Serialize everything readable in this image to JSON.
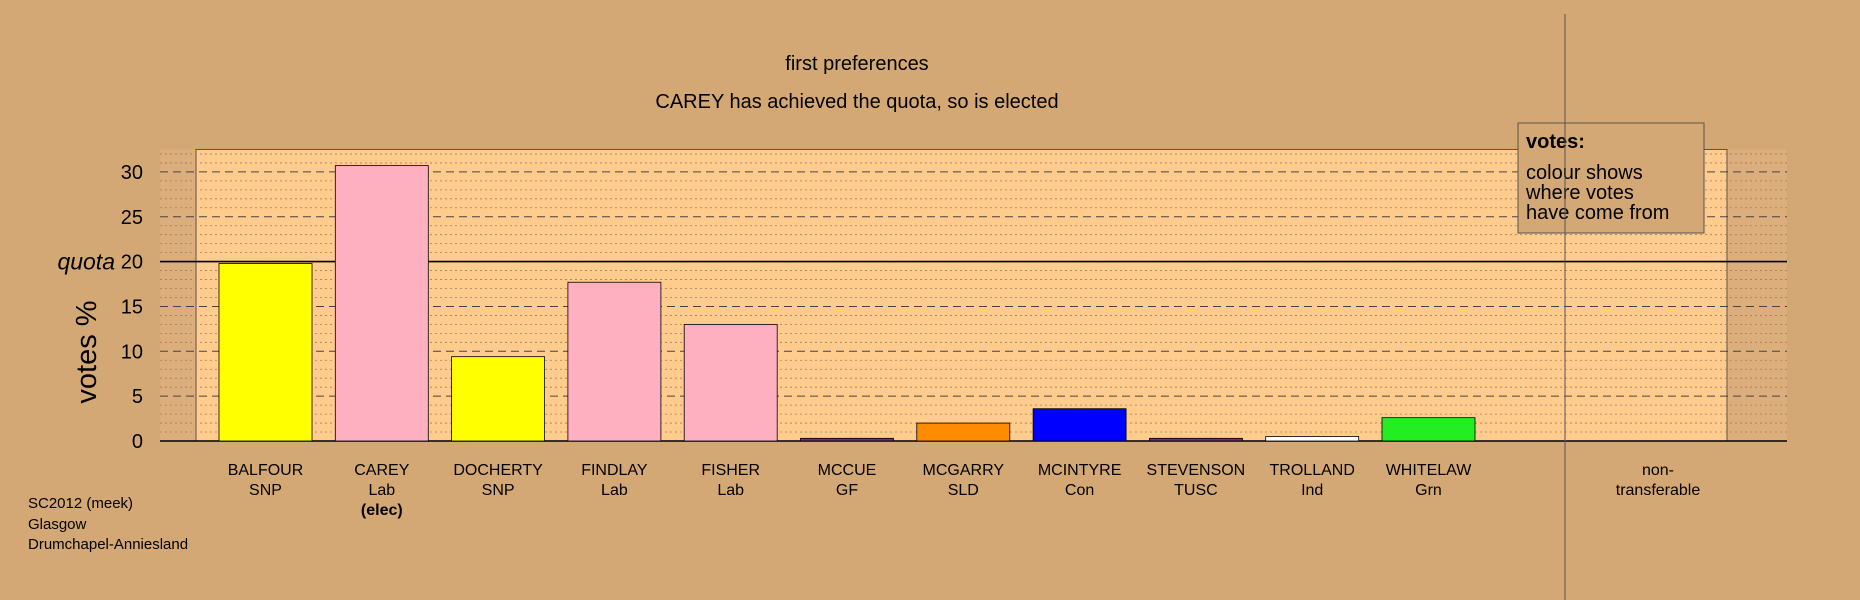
{
  "chart_data": {
    "type": "bar",
    "title": "first preferences",
    "subtitle": "CAREY has achieved the quota, so is elected",
    "ylabel": "votes %",
    "ylim": [
      0,
      32.5
    ],
    "yticks": [
      0,
      5,
      10,
      15,
      20,
      25,
      30
    ],
    "grid": true,
    "quota": {
      "label": "quota",
      "value": 20
    },
    "categories": [
      {
        "name": "BALFOUR",
        "party": "SNP",
        "note": "",
        "value": 19.8,
        "color": "#ffff00"
      },
      {
        "name": "CAREY",
        "party": "Lab",
        "note": "(elec)",
        "value": 30.7,
        "color": "#ffb0c0"
      },
      {
        "name": "DOCHERTY",
        "party": "SNP",
        "note": "",
        "value": 9.4,
        "color": "#ffff00"
      },
      {
        "name": "FINDLAY",
        "party": "Lab",
        "note": "",
        "value": 17.7,
        "color": "#ffb0c0"
      },
      {
        "name": "FISHER",
        "party": "Lab",
        "note": "",
        "value": 13.0,
        "color": "#ffb0c0"
      },
      {
        "name": "MCCUE",
        "party": "GF",
        "note": "",
        "value": 0.3,
        "color": "#7b2a7b"
      },
      {
        "name": "MCGARRY",
        "party": "SLD",
        "note": "",
        "value": 2.0,
        "color": "#ff8c00"
      },
      {
        "name": "MCINTYRE",
        "party": "Con",
        "note": "",
        "value": 3.6,
        "color": "#0000ff"
      },
      {
        "name": "STEVENSON",
        "party": "TUSC",
        "note": "",
        "value": 0.3,
        "color": "#7b2a7b"
      },
      {
        "name": "TROLLAND",
        "party": "Ind",
        "note": "",
        "value": 0.5,
        "color": "#ffffff"
      },
      {
        "name": "WHITELAW",
        "party": "Grn",
        "note": "",
        "value": 2.6,
        "color": "#22ee22"
      }
    ],
    "nontransferable": {
      "line1": "non-",
      "line2": "transferable",
      "value": 0
    },
    "legend": {
      "placement": "top-right",
      "title": "votes:",
      "lines": [
        "colour shows",
        "where votes",
        "have come from"
      ]
    },
    "footer": [
      "SC2012 (meek)",
      "Glasgow",
      "Drumchapel-Anniesland"
    ]
  }
}
